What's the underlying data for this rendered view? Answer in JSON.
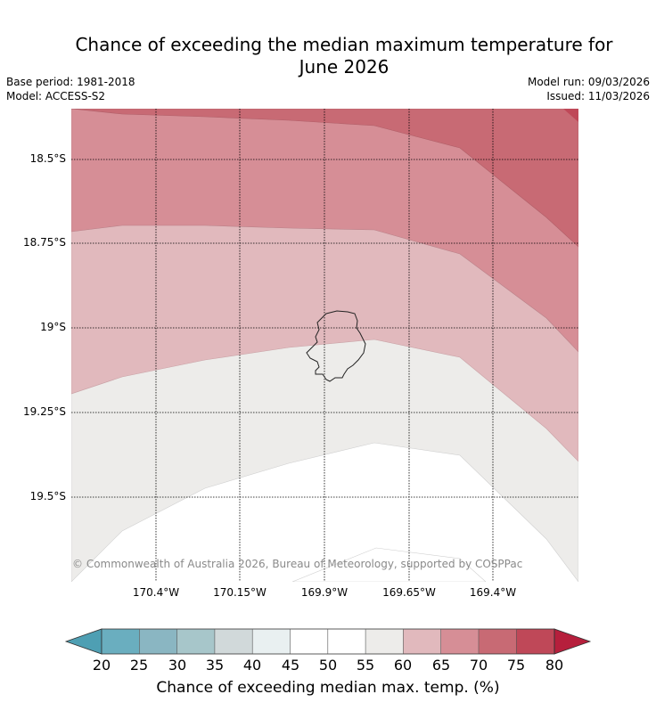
{
  "header": {
    "title_line1": "Chance of exceeding the median maximum temperature for",
    "title_line2": "June 2026",
    "base_period": "Base period: 1981-2018",
    "model": "Model: ACCESS-S2",
    "model_run": "Model run: 09/03/2026",
    "issued": "Issued: 11/03/2026"
  },
  "map": {
    "lat_labels": [
      "18.5°S",
      "18.75°S",
      "19°S",
      "19.25°S",
      "19.5°S"
    ],
    "lon_labels": [
      "170.4°W",
      "170.15°W",
      "169.9°W",
      "169.65°W",
      "169.4°W"
    ],
    "copyright": "© Commonwealth of Australia 2026, Bureau of Meteorology, supported by COSPPac"
  },
  "colorbar": {
    "ticks": [
      "20",
      "25",
      "30",
      "35",
      "40",
      "45",
      "50",
      "55",
      "60",
      "65",
      "70",
      "75",
      "80"
    ],
    "colors": {
      "under": "#4e9fb3",
      "b20_25": "#6aaebf",
      "b25_30": "#8ab6c2",
      "b30_35": "#a7c6ca",
      "b35_40": "#d1d9da",
      "b40_45": "#e9f0f1",
      "b45_50": "#ffffff",
      "b50_55": "#ffffff",
      "b55_60": "#edecea",
      "b60_65": "#e1b9bd",
      "b65_70": "#d68e96",
      "b70_75": "#c86a74",
      "b75_80": "#bf4858",
      "over": "#b61f3c"
    },
    "label": "Chance of exceeding median max. temp. (%)"
  }
}
